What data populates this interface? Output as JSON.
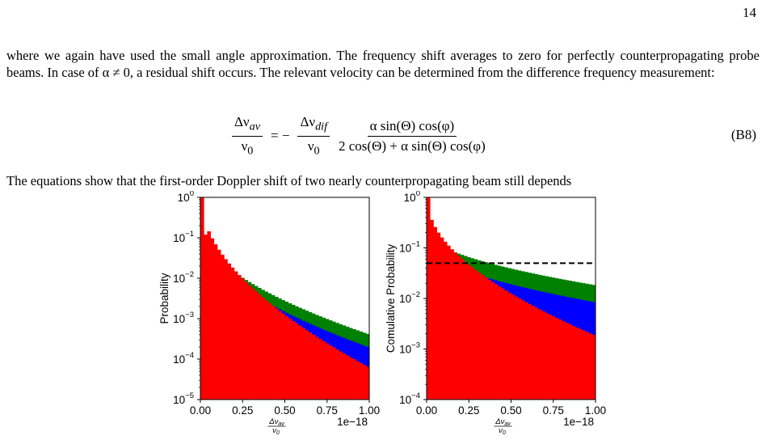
{
  "page": {
    "number": "14"
  },
  "paragraph1": "where we again have used the small angle approximation. The frequency shift averages to zero for perfectly counterpropagating probe beams. In case of α ≠ 0, a residual shift occurs. The relevant velocity can be determined from the difference frequency measurement:",
  "equation": {
    "lhs_num": "Δν",
    "lhs_num_sub": "av",
    "lhs_den": "ν",
    "lhs_den_sub": "0",
    "equals": "= −",
    "rhs1_num": "Δν",
    "rhs1_num_sub": "dif",
    "rhs1_den": "ν",
    "rhs1_den_sub": "0",
    "rhs2_num": "α sin(Θ) cos(φ)",
    "rhs2_den": "2 cos(Θ) + α sin(Θ) cos(φ)",
    "label": "(B8)"
  },
  "paragraph2": "The equations show that the first-order Doppler shift of two nearly counterpropagating beam still depends",
  "colors": {
    "red": "#ff0000",
    "blue": "#0000ff",
    "green": "#008000"
  },
  "chart_data": [
    {
      "type": "bar",
      "ylabel": "Probability",
      "xlabel": "Δν_av / ν_0",
      "x_offset_text": "1e−18",
      "yscale": "log",
      "xlim": [
        0,
        1.0
      ],
      "ylim": [
        1e-05,
        1
      ],
      "xticks": [
        "0.00",
        "0.25",
        "0.50",
        "0.75",
        "1.00"
      ],
      "yticks": [
        {
          "base": "10",
          "exp": "0"
        },
        {
          "base": "10",
          "exp": "−1"
        },
        {
          "base": "10",
          "exp": "−2"
        },
        {
          "base": "10",
          "exp": "−3"
        },
        {
          "base": "10",
          "exp": "−4"
        },
        {
          "base": "10",
          "exp": "−5"
        }
      ],
      "series": [
        {
          "color": "#008000",
          "start": 0.22,
          "end": 0.00042
        },
        {
          "color": "#0000ff",
          "start": 0.15,
          "end": 0.0002
        },
        {
          "color": "#ff0000",
          "start": 1.0,
          "end": 6.5e-05
        }
      ]
    },
    {
      "type": "bar",
      "ylabel": "Comulative Probability",
      "xlabel": "Δν_av / ν_0",
      "x_offset_text": "1e−18",
      "yscale": "log",
      "xlim": [
        0,
        1.0
      ],
      "ylim": [
        0.0001,
        1
      ],
      "xticks": [
        "0.00",
        "0.25",
        "0.50",
        "0.75",
        "1.00"
      ],
      "yticks": [
        {
          "base": "10",
          "exp": "0"
        },
        {
          "base": "10",
          "exp": "−1"
        },
        {
          "base": "10",
          "exp": "−2"
        },
        {
          "base": "10",
          "exp": "−3"
        },
        {
          "base": "10",
          "exp": "−4"
        }
      ],
      "threshold": 0.05,
      "series": [
        {
          "color": "#008000",
          "start": 0.27,
          "end": 0.0185
        },
        {
          "color": "#0000ff",
          "start": 0.15,
          "end": 0.0085
        },
        {
          "color": "#ff0000",
          "start": 1.0,
          "end": 0.0019
        }
      ]
    }
  ]
}
